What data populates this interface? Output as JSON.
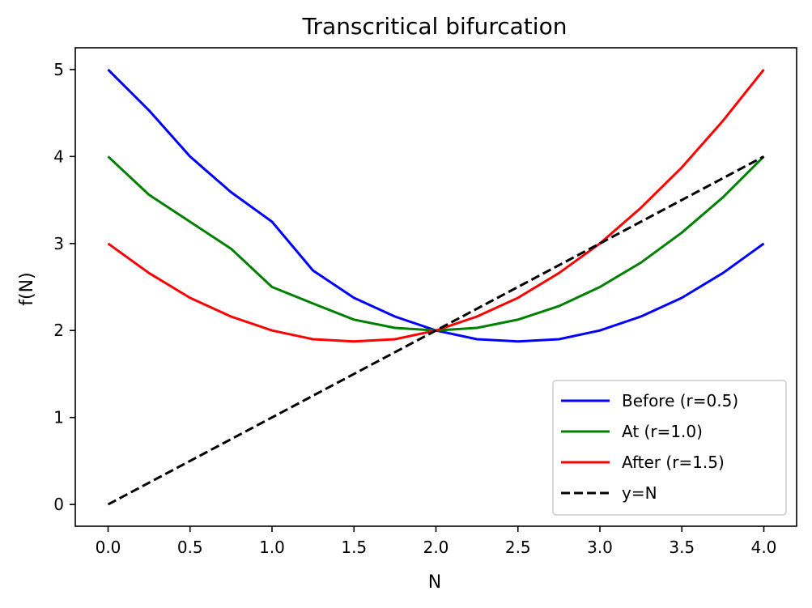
{
  "chart_data": {
    "type": "line",
    "title": "Transcritical bifurcation",
    "xlabel": "N",
    "ylabel": "f(N)",
    "xlim": [
      -0.2,
      4.2
    ],
    "ylim": [
      -0.25,
      5.25
    ],
    "xticks": [
      0.0,
      0.5,
      1.0,
      1.5,
      2.0,
      2.5,
      3.0,
      3.5,
      4.0
    ],
    "xtick_labels": [
      "0.0",
      "0.5",
      "1.0",
      "1.5",
      "2.0",
      "2.5",
      "3.0",
      "3.5",
      "4.0"
    ],
    "yticks": [
      0,
      1,
      2,
      3,
      4,
      5
    ],
    "ytick_labels": [
      "0",
      "1",
      "2",
      "3",
      "4",
      "5"
    ],
    "grid": false,
    "legend_position": "bottom-right",
    "series": [
      {
        "name": "Before (r=0.5)",
        "color": "#0000ff",
        "style": "solid",
        "x": [
          0.0,
          0.25,
          0.5,
          0.75,
          1.0,
          1.25,
          1.5,
          1.75,
          2.0,
          2.25,
          2.5,
          2.75,
          3.0,
          3.25,
          3.5,
          3.75,
          4.0
        ],
        "y": [
          5.0,
          4.53,
          4.0,
          3.59,
          3.25,
          2.69,
          2.375,
          2.16,
          2.0,
          1.9,
          1.875,
          1.9,
          2.0,
          2.16,
          2.375,
          2.66,
          3.0
        ]
      },
      {
        "name": "At (r=1.0)",
        "color": "#008000",
        "style": "solid",
        "x": [
          0.0,
          0.25,
          0.5,
          0.75,
          1.0,
          1.25,
          1.5,
          1.75,
          2.0,
          2.25,
          2.5,
          2.75,
          3.0,
          3.25,
          3.5,
          3.75,
          4.0
        ],
        "y": [
          4.0,
          3.56,
          3.25,
          2.94,
          2.5,
          2.31,
          2.125,
          2.03,
          2.0,
          2.03,
          2.125,
          2.28,
          2.5,
          2.78,
          3.125,
          3.53,
          4.0
        ]
      },
      {
        "name": "After (r=1.5)",
        "color": "#ff0000",
        "style": "solid",
        "x": [
          0.0,
          0.25,
          0.5,
          0.75,
          1.0,
          1.25,
          1.5,
          1.75,
          2.0,
          2.25,
          2.5,
          2.75,
          3.0,
          3.25,
          3.5,
          3.75,
          4.0
        ],
        "y": [
          3.0,
          2.66,
          2.375,
          2.16,
          2.0,
          1.9,
          1.875,
          1.9,
          2.0,
          2.16,
          2.375,
          2.66,
          3.0,
          3.41,
          3.875,
          4.41,
          5.0
        ]
      },
      {
        "name": "y=N",
        "color": "#000000",
        "style": "dashed",
        "x": [
          0.0,
          4.0
        ],
        "y": [
          0.0,
          4.0
        ]
      }
    ]
  }
}
